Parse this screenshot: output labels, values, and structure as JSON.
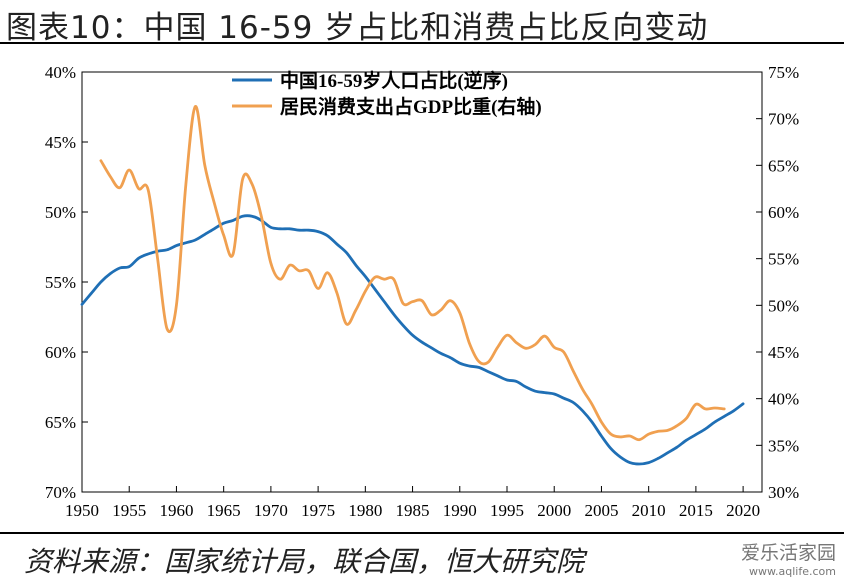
{
  "title": "图表10：中国 16-59 岁占比和消费占比反向变动",
  "source": "资料来源：国家统计局，联合国，恒大研究院",
  "watermark": {
    "text": "爱乐活家园",
    "url": "www.aqlife.com"
  },
  "chart_data": {
    "type": "line",
    "legend_position": "top-center",
    "x_ticks": [
      1950,
      1955,
      1960,
      1965,
      1970,
      1975,
      1980,
      1985,
      1990,
      1995,
      2000,
      2005,
      2010,
      2015,
      2020
    ],
    "xlim": [
      1950,
      2022
    ],
    "left_axis": {
      "ticks": [
        "40%",
        "45%",
        "50%",
        "55%",
        "60%",
        "65%",
        "70%"
      ],
      "ylim": [
        40,
        70
      ],
      "inverted": true
    },
    "right_axis": {
      "ticks": [
        "75%",
        "70%",
        "65%",
        "60%",
        "55%",
        "50%",
        "45%",
        "40%",
        "35%",
        "30%"
      ],
      "ylim": [
        30,
        75
      ]
    },
    "series": [
      {
        "name": "中国16-59岁人口占比(逆序)",
        "axis": "left",
        "color": "#1f6fb5",
        "x": [
          1950,
          1951,
          1952,
          1953,
          1954,
          1955,
          1956,
          1957,
          1958,
          1959,
          1960,
          1961,
          1962,
          1963,
          1964,
          1965,
          1966,
          1967,
          1968,
          1969,
          1970,
          1971,
          1972,
          1973,
          1974,
          1975,
          1976,
          1977,
          1978,
          1979,
          1980,
          1981,
          1982,
          1983,
          1984,
          1985,
          1986,
          1987,
          1988,
          1989,
          1990,
          1991,
          1992,
          1993,
          1994,
          1995,
          1996,
          1997,
          1998,
          1999,
          2000,
          2001,
          2002,
          2003,
          2004,
          2005,
          2006,
          2007,
          2008,
          2009,
          2010,
          2011,
          2012,
          2013,
          2014,
          2015,
          2016,
          2017,
          2018,
          2019,
          2020
        ],
        "values": [
          56.6,
          55.8,
          55.0,
          54.4,
          54.0,
          53.9,
          53.3,
          53.0,
          52.8,
          52.7,
          52.4,
          52.2,
          52.0,
          51.6,
          51.2,
          50.8,
          50.6,
          50.3,
          50.3,
          50.6,
          51.1,
          51.2,
          51.2,
          51.3,
          51.3,
          51.4,
          51.7,
          52.3,
          52.9,
          53.8,
          54.6,
          55.5,
          56.4,
          57.3,
          58.1,
          58.8,
          59.3,
          59.7,
          60.1,
          60.4,
          60.8,
          61.0,
          61.1,
          61.4,
          61.7,
          62.0,
          62.1,
          62.5,
          62.8,
          62.9,
          63.0,
          63.3,
          63.6,
          64.2,
          65.0,
          66.0,
          66.9,
          67.5,
          67.9,
          68.0,
          67.9,
          67.6,
          67.2,
          66.8,
          66.3,
          65.9,
          65.5,
          65.0,
          64.6,
          64.2,
          63.7
        ]
      },
      {
        "name": "居民消费支出占GDP比重(右轴)",
        "axis": "right",
        "color": "#f0a050",
        "x": [
          1952,
          1953,
          1954,
          1955,
          1956,
          1957,
          1958,
          1959,
          1960,
          1961,
          1962,
          1963,
          1964,
          1965,
          1966,
          1967,
          1968,
          1969,
          1970,
          1971,
          1972,
          1973,
          1974,
          1975,
          1976,
          1977,
          1978,
          1979,
          1980,
          1981,
          1982,
          1983,
          1984,
          1985,
          1986,
          1987,
          1988,
          1989,
          1990,
          1991,
          1992,
          1993,
          1994,
          1995,
          1996,
          1997,
          1998,
          1999,
          2000,
          2001,
          2002,
          2003,
          2004,
          2005,
          2006,
          2007,
          2008,
          2009,
          2010,
          2011,
          2012,
          2013,
          2014,
          2015,
          2016,
          2017,
          2018
        ],
        "values": [
          65.5,
          63.8,
          62.6,
          64.5,
          62.5,
          62.4,
          55.0,
          47.5,
          50.0,
          63.0,
          71.3,
          65.0,
          61.0,
          57.5,
          55.5,
          63.5,
          63.0,
          59.5,
          54.5,
          52.8,
          54.3,
          53.7,
          53.7,
          51.8,
          53.5,
          51.3,
          48.0,
          49.5,
          51.5,
          53.0,
          52.8,
          52.8,
          50.2,
          50.4,
          50.5,
          49.0,
          49.5,
          50.5,
          49.2,
          46.0,
          44.0,
          43.9,
          45.5,
          46.8,
          46.0,
          45.4,
          45.8,
          46.7,
          45.5,
          45.0,
          43.0,
          41.0,
          39.4,
          37.5,
          36.2,
          35.9,
          36.0,
          35.6,
          36.2,
          36.5,
          36.6,
          37.1,
          37.9,
          39.4,
          38.9,
          39.0,
          38.9
        ]
      }
    ]
  }
}
